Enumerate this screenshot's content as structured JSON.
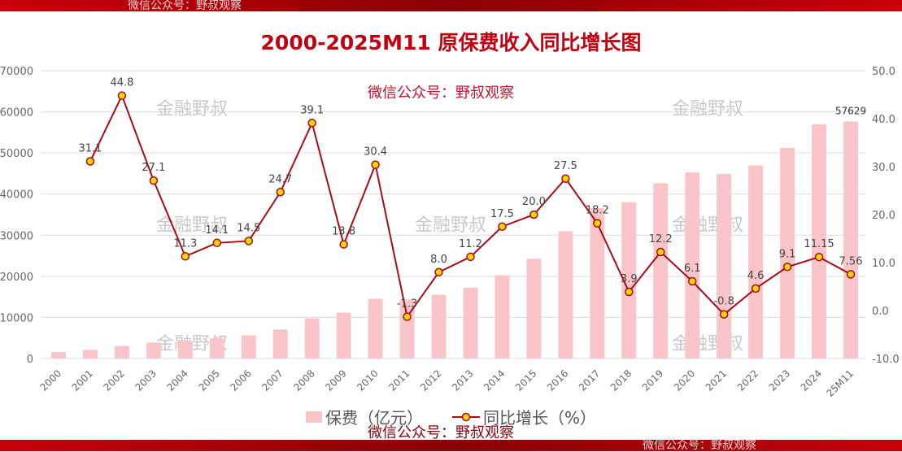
{
  "title": "2000-2025M11 原保费收入同比增长图",
  "watermarks": {
    "wechat": "微信公众号：野叔观察",
    "brand": "金融野叔"
  },
  "colors": {
    "bar": "#f9c5c8",
    "line": "#a50d1a",
    "marker_fill": "#ffd400",
    "title": "#c00010",
    "band": "#b00008"
  },
  "chart_data": {
    "type": "bar+line",
    "title": "2000-2025M11 原保费收入同比增长图",
    "categories": [
      "2000",
      "2001",
      "2002",
      "2003",
      "2004",
      "2005",
      "2006",
      "2007",
      "2008",
      "2009",
      "2010",
      "2011",
      "2012",
      "2013",
      "2014",
      "2015",
      "2016",
      "2017",
      "2018",
      "2019",
      "2020",
      "2021",
      "2022",
      "2023",
      "2024",
      "25M11"
    ],
    "series": [
      {
        "name": "保费（亿元）",
        "type": "bar",
        "axis": "left",
        "values": [
          1596,
          2112,
          3053,
          3880,
          4318,
          4927,
          5641,
          7036,
          9784,
          11137,
          14528,
          14339,
          15488,
          17222,
          20235,
          24283,
          30959,
          36581,
          38017,
          42645,
          45257,
          44900,
          46957,
          51247,
          56963,
          57629
        ]
      },
      {
        "name": "同比增长（%）",
        "type": "line",
        "axis": "right",
        "values": [
          null,
          31.1,
          44.8,
          27.1,
          11.3,
          14.1,
          14.5,
          24.7,
          39.1,
          13.8,
          30.4,
          -1.3,
          8.0,
          11.2,
          17.5,
          20.0,
          27.5,
          18.2,
          3.9,
          12.2,
          6.1,
          -0.8,
          4.6,
          9.1,
          11.15,
          7.56
        ],
        "labels": [
          "",
          "31.1",
          "44.8",
          "27.1",
          "11.3",
          "14.1",
          "14.5",
          "24.7",
          "39.1",
          "13.8",
          "30.4",
          "-1.3",
          "8.0",
          "11.2",
          "17.5",
          "20.0",
          "27.5",
          "18.2",
          "3.9",
          "12.2",
          "6.1",
          "-0.8",
          "4.6",
          "9.1",
          "11.15",
          "7.56"
        ]
      }
    ],
    "bar_data_label": {
      "category": "25M11",
      "text": "57629"
    },
    "y_left": {
      "lim": [
        0,
        70000
      ],
      "ticks": [
        "0",
        "10000",
        "20000",
        "30000",
        "40000",
        "50000",
        "60000",
        "70000"
      ]
    },
    "y_right": {
      "lim": [
        -10,
        50
      ],
      "ticks": [
        "-10.0",
        "0.0",
        "10.0",
        "20.0",
        "30.0",
        "40.0",
        "50.0"
      ]
    },
    "grid": true,
    "legend": "bottom"
  }
}
